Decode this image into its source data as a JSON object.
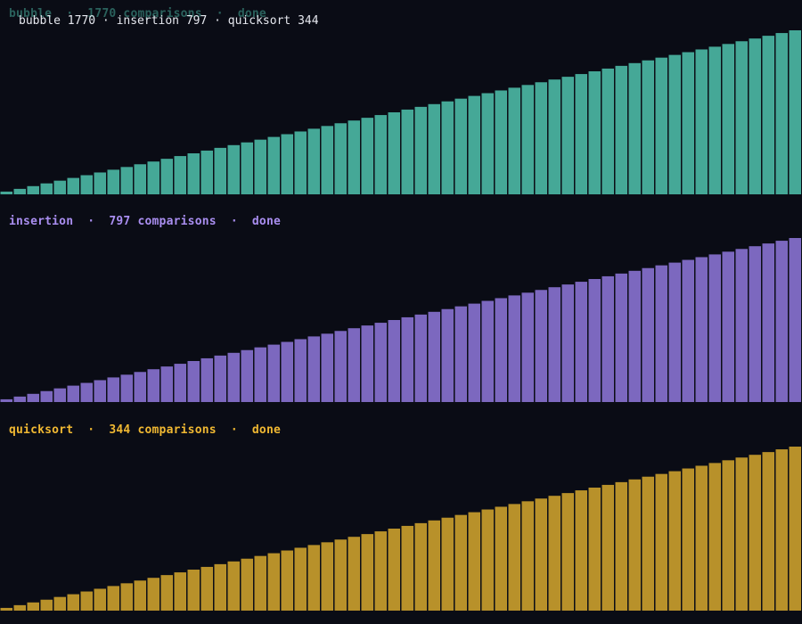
{
  "summary": "bubble 1770 · insertion 797 · quicksort 344",
  "panels": [
    {
      "key": "bubble",
      "label": "bubble  ·  1770 comparisons  ·  done",
      "color": "#45a897",
      "values": [
        1,
        2,
        3,
        4,
        5,
        6,
        7,
        8,
        9,
        10,
        11,
        12,
        13,
        14,
        15,
        16,
        17,
        18,
        19,
        20,
        21,
        22,
        23,
        24,
        25,
        26,
        27,
        28,
        29,
        30,
        31,
        32,
        33,
        34,
        35,
        36,
        37,
        38,
        39,
        40,
        41,
        42,
        43,
        44,
        45,
        46,
        47,
        48,
        49,
        50,
        51,
        52,
        53,
        54,
        55,
        56,
        57,
        58,
        59,
        60
      ]
    },
    {
      "key": "insertion",
      "label": "insertion  ·  797 comparisons  ·  done",
      "color": "#7c68bf",
      "values": [
        1,
        2,
        3,
        4,
        5,
        6,
        7,
        8,
        9,
        10,
        11,
        12,
        13,
        14,
        15,
        16,
        17,
        18,
        19,
        20,
        21,
        22,
        23,
        24,
        25,
        26,
        27,
        28,
        29,
        30,
        31,
        32,
        33,
        34,
        35,
        36,
        37,
        38,
        39,
        40,
        41,
        42,
        43,
        44,
        45,
        46,
        47,
        48,
        49,
        50,
        51,
        52,
        53,
        54,
        55,
        56,
        57,
        58,
        59,
        60
      ]
    },
    {
      "key": "quicksort",
      "label": "quicksort  ·  344 comparisons  ·  done",
      "color": "#b8912a",
      "values": [
        1,
        2,
        3,
        4,
        5,
        6,
        7,
        8,
        9,
        10,
        11,
        12,
        13,
        14,
        15,
        16,
        17,
        18,
        19,
        20,
        21,
        22,
        23,
        24,
        25,
        26,
        27,
        28,
        29,
        30,
        31,
        32,
        33,
        34,
        35,
        36,
        37,
        38,
        39,
        40,
        41,
        42,
        43,
        44,
        45,
        46,
        47,
        48,
        49,
        50,
        51,
        52,
        53,
        54,
        55,
        56,
        57,
        58,
        59,
        60
      ]
    }
  ],
  "label_colors": {
    "bubble": "#45a897",
    "insertion": "#a98ef0",
    "quicksort": "#f0b832"
  }
}
